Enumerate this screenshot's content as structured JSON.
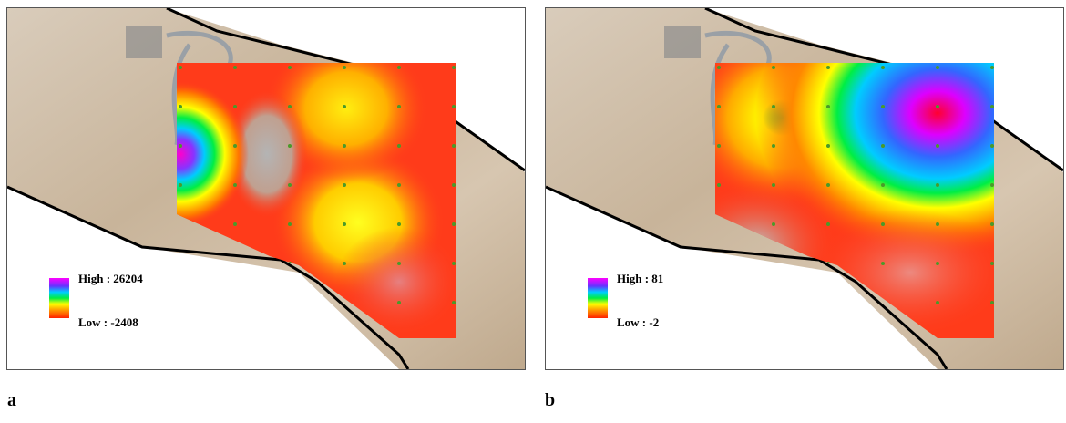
{
  "panels": [
    {
      "label": "a",
      "legend": {
        "high": "High : 26204",
        "low": "Low : -2408"
      }
    },
    {
      "label": "b",
      "legend": {
        "high": "High : 81",
        "low": "Low : -2"
      }
    }
  ]
}
